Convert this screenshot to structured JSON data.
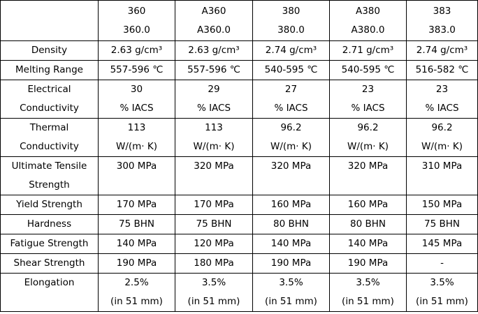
{
  "table": {
    "header": [
      [
        "360",
        "360.0"
      ],
      [
        "A360",
        "A360.0"
      ],
      [
        "380",
        "380.0"
      ],
      [
        "A380",
        "A380.0"
      ],
      [
        "383",
        "383.0"
      ]
    ],
    "rows": [
      {
        "label": [
          "Density"
        ],
        "cells": [
          [
            "2.63 g/cm³"
          ],
          [
            "2.63 g/cm³"
          ],
          [
            "2.74 g/cm³"
          ],
          [
            "2.71 g/cm³"
          ],
          [
            "2.74 g/cm³"
          ]
        ]
      },
      {
        "label": [
          "Melting Range"
        ],
        "cells": [
          [
            "557-596 ℃"
          ],
          [
            "557-596 ℃"
          ],
          [
            "540-595 ℃"
          ],
          [
            "540-595 ℃"
          ],
          [
            "516-582 ℃"
          ]
        ]
      },
      {
        "label": [
          "Electrical",
          "Conductivity"
        ],
        "cells": [
          [
            "30",
            "% IACS"
          ],
          [
            "29",
            "% IACS"
          ],
          [
            "27",
            "% IACS"
          ],
          [
            "23",
            "% IACS"
          ],
          [
            "23",
            "% IACS"
          ]
        ]
      },
      {
        "label": [
          "Thermal",
          "Conductivity"
        ],
        "cells": [
          [
            "113",
            "W/(m· K)"
          ],
          [
            "113",
            "W/(m· K)"
          ],
          [
            "96.2",
            "W/(m· K)"
          ],
          [
            "96.2",
            "W/(m· K)"
          ],
          [
            "96.2",
            "W/(m· K)"
          ]
        ]
      },
      {
        "label": [
          "Ultimate Tensile",
          "Strength"
        ],
        "cells": [
          [
            "300 MPa"
          ],
          [
            "320 MPa"
          ],
          [
            "320 MPa"
          ],
          [
            "320 MPa"
          ],
          [
            "310 MPa"
          ]
        ]
      },
      {
        "label": [
          "Yield Strength"
        ],
        "cells": [
          [
            "170 MPa"
          ],
          [
            "170 MPa"
          ],
          [
            "160 MPa"
          ],
          [
            "160 MPa"
          ],
          [
            "150 MPa"
          ]
        ]
      },
      {
        "label": [
          "Hardness"
        ],
        "cells": [
          [
            "75 BHN"
          ],
          [
            "75 BHN"
          ],
          [
            "80 BHN"
          ],
          [
            "80 BHN"
          ],
          [
            "75 BHN"
          ]
        ]
      },
      {
        "label": [
          "Fatigue Strength"
        ],
        "cells": [
          [
            "140 MPa"
          ],
          [
            "120 MPa"
          ],
          [
            "140 MPa"
          ],
          [
            "140 MPa"
          ],
          [
            "145 MPa"
          ]
        ]
      },
      {
        "label": [
          "Shear Strength"
        ],
        "cells": [
          [
            "190 MPa"
          ],
          [
            "180 MPa"
          ],
          [
            "190 MPa"
          ],
          [
            "190 MPa"
          ],
          [
            "-"
          ]
        ]
      },
      {
        "label": [
          "Elongation"
        ],
        "cells": [
          [
            "2.5%",
            "(in 51 mm)"
          ],
          [
            "3.5%",
            "(in 51 mm)"
          ],
          [
            "3.5%",
            "(in 51 mm)"
          ],
          [
            "3.5%",
            "(in 51 mm)"
          ],
          [
            "3.5%",
            "(in 51 mm)"
          ]
        ]
      }
    ]
  }
}
